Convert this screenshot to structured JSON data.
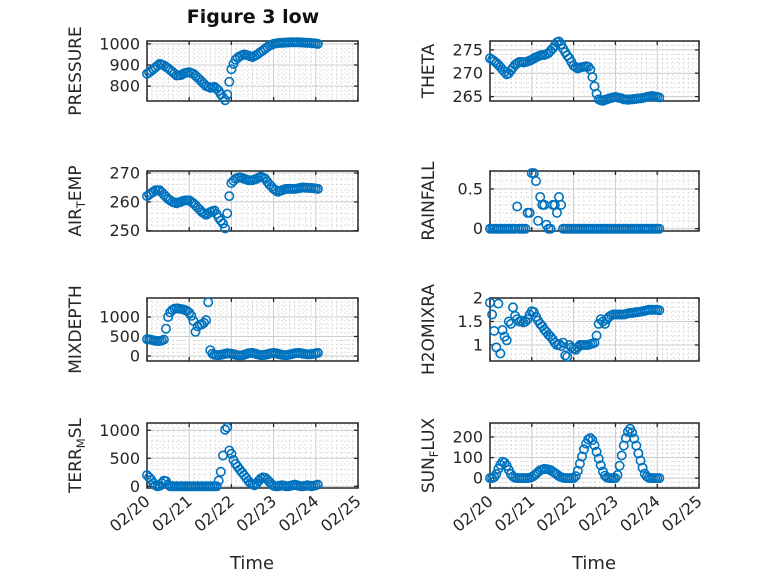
{
  "figure": {
    "title": "Figure 3 low",
    "xlabel": "Time"
  },
  "style": {
    "marker_color": "#0072BD",
    "axis_color": "#262626",
    "major_grid_color": "#cccccc",
    "minor_grid_color": "#c4c4c4",
    "text_color": "#262626",
    "background": "#ffffff"
  },
  "x_axis": {
    "lim": [
      0,
      5
    ],
    "tick_values": [
      0,
      1,
      2,
      3,
      4,
      5
    ],
    "tick_labels": [
      "02/20",
      "02/21",
      "02/22",
      "02/23",
      "02/24",
      "02/25"
    ],
    "minor_step": 0.125
  },
  "chart_data": [
    {
      "type": "scatter",
      "id": "pressure",
      "ylabel": "PRESSURE",
      "label_parts": [
        {
          "t": "PRESSURE",
          "sub": false
        }
      ],
      "col": 0,
      "row": 0,
      "ylim": [
        729,
        1014
      ],
      "ytick_values": [
        800,
        900,
        1000
      ],
      "ytick_labels": [
        "800",
        "900",
        "1000"
      ],
      "y_minor_step": 20,
      "x0": 0,
      "dx": 0.05,
      "values": [
        858,
        865,
        872,
        880,
        888,
        897,
        905,
        902,
        898,
        891,
        885,
        876,
        868,
        859,
        850,
        851,
        852,
        857,
        862,
        864,
        866,
        862,
        858,
        849,
        840,
        830,
        820,
        810,
        800,
        796,
        792,
        794,
        796,
        787,
        778,
        761,
        745,
        733,
        760,
        820,
        880,
        905,
        925,
        934,
        942,
        946,
        950,
        948,
        945,
        941,
        938,
        943,
        948,
        955,
        962,
        970,
        978,
        985,
        992,
        996,
        1000,
        1002,
        1004,
        1005,
        1006,
        1006,
        1007,
        1007,
        1008,
        1008,
        1008,
        1008,
        1008,
        1007,
        1007,
        1006,
        1006,
        1005,
        1004,
        1003,
        1002,
        1000
      ]
    },
    {
      "type": "scatter",
      "id": "theta",
      "ylabel": "THETA",
      "label_parts": [
        {
          "t": "THETA",
          "sub": false
        }
      ],
      "col": 1,
      "row": 0,
      "ylim": [
        264.05,
        276.9
      ],
      "ytick_values": [
        265,
        270,
        275
      ],
      "ytick_labels": [
        "265",
        "270",
        "275"
      ],
      "y_minor_step": 1,
      "x0": 0,
      "dx": 0.05,
      "values": [
        273.2,
        272.9,
        272.6,
        272.2,
        271.8,
        271.3,
        270.8,
        270.3,
        269.8,
        270,
        270.6,
        271.2,
        271.8,
        272.1,
        272.4,
        272.4,
        272.3,
        272.4,
        272.5,
        272.7,
        272.9,
        273.2,
        273.4,
        273.6,
        273.8,
        273.9,
        273.9,
        274.1,
        274.3,
        274.8,
        275.3,
        275.9,
        276.6,
        276.8,
        276.2,
        275.3,
        274.5,
        273.8,
        273.2,
        272.4,
        271.6,
        271.3,
        271,
        271.2,
        271.3,
        271.4,
        271.5,
        271.4,
        270.8,
        269.2,
        267.2,
        265.6,
        264.4,
        264.2,
        264.1,
        264.3,
        264.4,
        264.6,
        264.7,
        264.8,
        264.9,
        264.8,
        264.7,
        264.6,
        264.4,
        264.4,
        264.3,
        264.4,
        264.4,
        264.5,
        264.5,
        264.6,
        264.6,
        264.7,
        264.8,
        264.9,
        265,
        265.1,
        265.1,
        265,
        264.9,
        264.8
      ]
    },
    {
      "type": "scatter",
      "id": "air_temp",
      "ylabel": "AIR_TEMP",
      "label_parts": [
        {
          "t": "AIR",
          "sub": false
        },
        {
          "t": "T",
          "sub": true
        },
        {
          "t": "EMP",
          "sub": false
        }
      ],
      "col": 0,
      "row": 1,
      "ylim": [
        249.9,
        270.7
      ],
      "ytick_values": [
        250,
        260,
        270
      ],
      "ytick_labels": [
        "250",
        "260",
        "270"
      ],
      "y_minor_step": 2,
      "x0": 0,
      "dx": 0.05,
      "values": [
        262,
        262.5,
        263,
        263.5,
        264,
        264,
        264,
        263.3,
        262.5,
        261.8,
        261,
        260.5,
        260,
        259.8,
        259.5,
        259.8,
        260,
        260.3,
        260.5,
        260.5,
        260.5,
        260,
        259.5,
        258.8,
        258,
        257.3,
        256.5,
        256,
        255.5,
        256,
        256.5,
        256.8,
        257,
        255.8,
        254.5,
        253.5,
        252.5,
        250.8,
        256,
        262,
        266.5,
        267.3,
        268,
        268.3,
        268.5,
        268.3,
        268,
        267.8,
        267.5,
        267.5,
        267.5,
        267.8,
        268,
        268.4,
        268.8,
        268.4,
        268,
        267,
        266,
        265.3,
        264.5,
        264,
        263.5,
        263.8,
        264,
        264.3,
        264.5,
        264.5,
        264.5,
        264.5,
        264.5,
        264.6,
        264.7,
        264.9,
        265,
        264.9,
        264.9,
        264.8,
        264.8,
        264.7,
        264.6,
        264.5
      ]
    },
    {
      "type": "scatter",
      "id": "rainfall",
      "ylabel": "RAINFALL",
      "label_parts": [
        {
          "t": "RAINFALL",
          "sub": false
        }
      ],
      "col": 1,
      "row": 1,
      "ylim": [
        -0.029,
        0.727
      ],
      "ytick_values": [
        0,
        0.5
      ],
      "ytick_labels": [
        "0",
        "0.5"
      ],
      "y_minor_step": 0.1,
      "x0": 0,
      "dx": 0.05,
      "values": [
        0,
        0,
        0,
        0,
        0,
        0,
        0,
        0,
        0,
        0,
        0,
        0,
        0,
        0.28,
        0,
        0,
        0,
        0,
        0.2,
        0.2,
        0.7,
        0.7,
        0.6,
        0.1,
        0.4,
        0.3,
        0.3,
        0.05,
        0,
        0,
        0.3,
        0.3,
        0.2,
        0.4,
        0.3,
        0,
        0,
        0,
        0,
        0,
        0,
        0,
        0,
        0,
        0,
        0,
        0,
        0,
        0,
        0,
        0,
        0,
        0,
        0,
        0,
        0,
        0,
        0,
        0,
        0,
        0,
        0,
        0,
        0,
        0,
        0,
        0,
        0,
        0,
        0,
        0,
        0,
        0,
        0,
        0,
        0,
        0,
        0,
        0,
        0,
        0,
        0
      ]
    },
    {
      "type": "scatter",
      "id": "mixdepth",
      "ylabel": "MIXDEPTH",
      "label_parts": [
        {
          "t": "MIXDEPTH",
          "sub": false
        }
      ],
      "col": 0,
      "row": 2,
      "ylim": [
        -128,
        1487
      ],
      "ytick_values": [
        0,
        500,
        1000
      ],
      "ytick_labels": [
        "0",
        "500",
        "1000"
      ],
      "y_minor_step": 100,
      "x0": 0,
      "dx": 0.05,
      "values": [
        430,
        425,
        415,
        400,
        390,
        385,
        385,
        395,
        420,
        700,
        1000,
        1120,
        1180,
        1210,
        1220,
        1215,
        1205,
        1195,
        1180,
        1155,
        1110,
        1030,
        900,
        620,
        760,
        800,
        810,
        850,
        920,
        1380,
        150,
        60,
        30,
        25,
        20,
        30,
        40,
        55,
        70,
        65,
        60,
        45,
        30,
        20,
        10,
        20,
        30,
        50,
        70,
        75,
        80,
        65,
        50,
        35,
        20,
        25,
        30,
        45,
        60,
        70,
        80,
        70,
        60,
        45,
        30,
        25,
        20,
        30,
        40,
        55,
        70,
        75,
        80,
        70,
        60,
        50,
        40,
        45,
        50,
        60,
        70,
        80
      ]
    },
    {
      "type": "scatter",
      "id": "h2omixra",
      "ylabel": "H2OMIXRA",
      "label_parts": [
        {
          "t": "H2OMIXRA",
          "sub": false
        }
      ],
      "col": 1,
      "row": 2,
      "ylim": [
        0.66,
        2.0
      ],
      "ytick_values": [
        1,
        1.5,
        2
      ],
      "ytick_labels": [
        "1",
        "1.5",
        "2"
      ],
      "y_minor_step": 0.1,
      "x0": 0,
      "dx": 0.05,
      "values": [
        1.9,
        1.65,
        1.3,
        0.95,
        1.88,
        0.82,
        1.32,
        1.18,
        1.1,
        1.5,
        1.45,
        1.8,
        1.62,
        1.55,
        1.5,
        1.52,
        1.48,
        1.5,
        1.55,
        1.65,
        1.72,
        1.7,
        1.6,
        1.52,
        1.45,
        1.4,
        1.33,
        1.28,
        1.22,
        1.18,
        1.12,
        1.05,
        1,
        1.02,
        0.98,
        1.05,
        0.78,
        0.75,
        1,
        0.95,
        0.92,
        0.9,
        0.95,
        1,
        1,
        1,
        1,
        1,
        1.02,
        1.03,
        1.05,
        1.2,
        1.45,
        1.55,
        1.5,
        1.45,
        1.55,
        1.6,
        1.63,
        1.65,
        1.65,
        1.65,
        1.65,
        1.65,
        1.65,
        1.66,
        1.67,
        1.68,
        1.68,
        1.69,
        1.7,
        1.7,
        1.71,
        1.72,
        1.73,
        1.74,
        1.75,
        1.75,
        1.75,
        1.75,
        1.75,
        1.74
      ]
    },
    {
      "type": "scatter",
      "id": "terr_msl",
      "ylabel": "TERR_MSL",
      "label_parts": [
        {
          "t": "TERR",
          "sub": false
        },
        {
          "t": "M",
          "sub": true
        },
        {
          "t": "SL",
          "sub": false
        }
      ],
      "col": 0,
      "row": 3,
      "ylim": [
        -30,
        1130
      ],
      "ytick_values": [
        0,
        500,
        1000
      ],
      "ytick_labels": [
        "0",
        "500",
        "1000"
      ],
      "y_minor_step": 100,
      "x0": 0,
      "dx": 0.05,
      "values": [
        200,
        160,
        120,
        60,
        20,
        0,
        10,
        60,
        100,
        90,
        30,
        0,
        0,
        0,
        0,
        0,
        0,
        0,
        0,
        0,
        0,
        0,
        0,
        0,
        0,
        0,
        0,
        0,
        0,
        0,
        0,
        0,
        0,
        0,
        100,
        260,
        550,
        1010,
        1050,
        640,
        580,
        470,
        400,
        350,
        300,
        250,
        200,
        150,
        100,
        60,
        30,
        20,
        50,
        100,
        140,
        160,
        150,
        120,
        80,
        40,
        10,
        0,
        0,
        10,
        20,
        10,
        0,
        0,
        10,
        20,
        30,
        20,
        10,
        0,
        0,
        10,
        20,
        10,
        0,
        10,
        20,
        30
      ]
    },
    {
      "type": "scatter",
      "id": "sun_flux",
      "ylabel": "SUN_FLUX",
      "label_parts": [
        {
          "t": "SUN",
          "sub": false
        },
        {
          "t": "F",
          "sub": true
        },
        {
          "t": "LUX",
          "sub": false
        }
      ],
      "col": 1,
      "row": 3,
      "ylim": [
        -48,
        268
      ],
      "ytick_values": [
        0,
        100,
        200
      ],
      "ytick_labels": [
        "0",
        "100",
        "200"
      ],
      "y_minor_step": 20,
      "x0": 0,
      "dx": 0.05,
      "values": [
        0,
        0,
        5,
        20,
        45,
        65,
        80,
        75,
        60,
        40,
        20,
        8,
        2,
        0,
        0,
        0,
        0,
        0,
        0,
        2,
        5,
        12,
        20,
        30,
        38,
        42,
        45,
        44,
        42,
        38,
        32,
        25,
        18,
        10,
        5,
        2,
        0,
        0,
        0,
        0,
        0,
        10,
        35,
        70,
        105,
        140,
        168,
        188,
        195,
        185,
        160,
        128,
        95,
        62,
        32,
        12,
        3,
        0,
        0,
        0,
        0,
        15,
        60,
        110,
        158,
        195,
        225,
        240,
        222,
        192,
        158,
        120,
        85,
        50,
        22,
        8,
        2,
        0,
        0,
        0,
        0,
        0
      ]
    }
  ]
}
